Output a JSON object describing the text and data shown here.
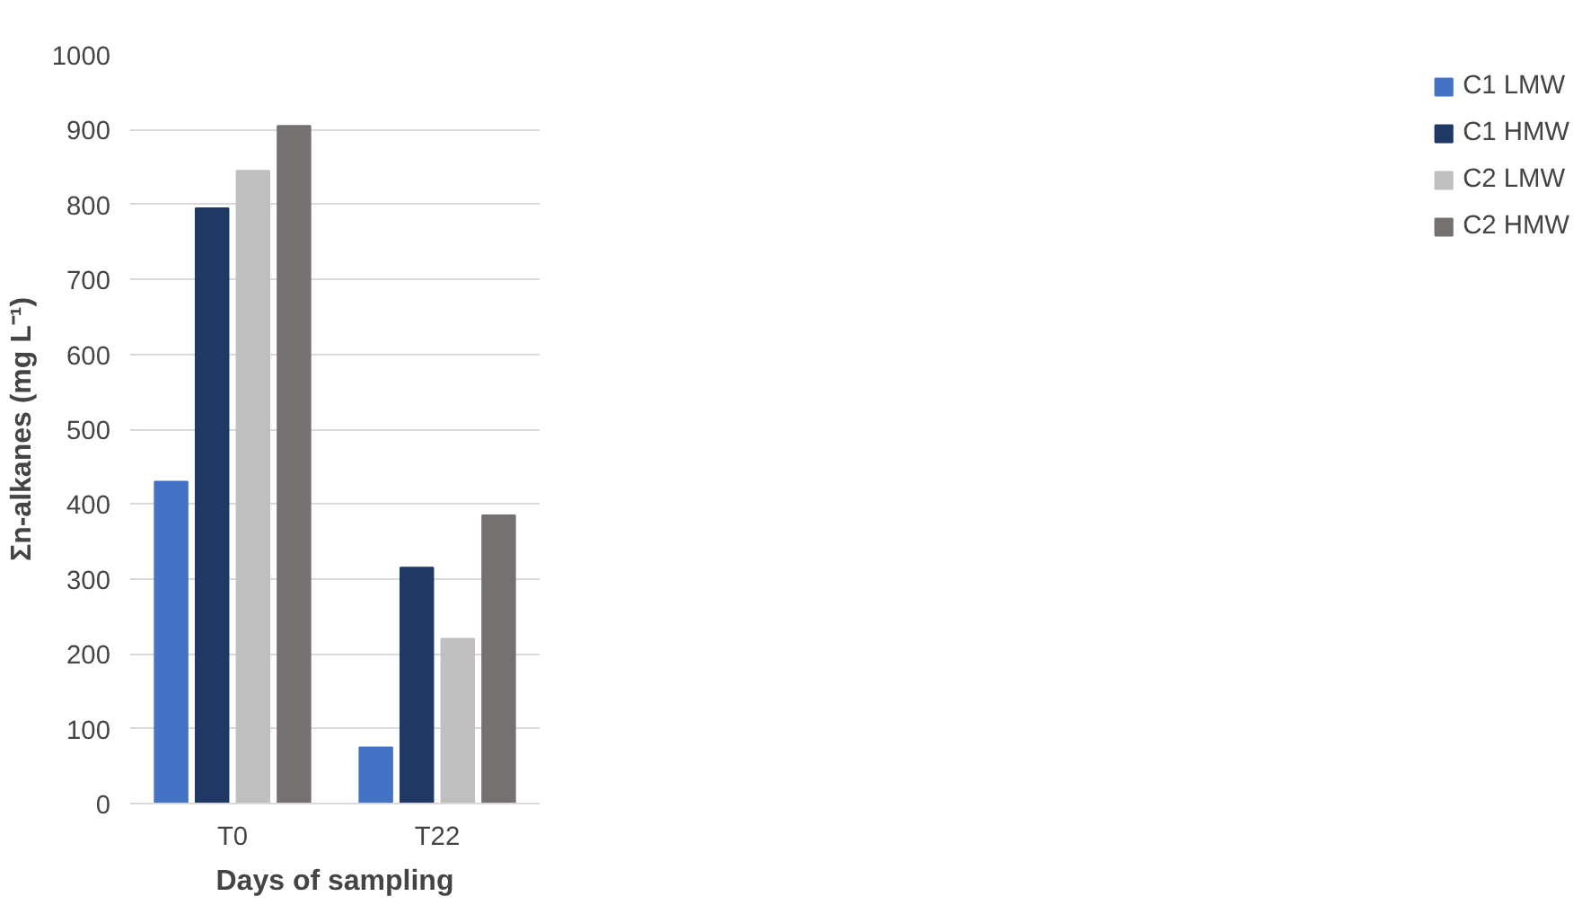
{
  "chart_data": {
    "type": "bar",
    "xlabel": "Days of sampling",
    "ylabel": "Σn-alkanes (mg L⁻¹)",
    "categories": [
      "T0",
      "T22"
    ],
    "series": [
      {
        "name": "C1 LMW",
        "color": "#4472c4",
        "values": [
          430,
          75
        ]
      },
      {
        "name": "C1 HMW",
        "color": "#203864",
        "values": [
          795,
          315
        ]
      },
      {
        "name": "C2 LMW",
        "color": "#bfbfbf",
        "values": [
          845,
          220
        ]
      },
      {
        "name": "C2 HMW",
        "color": "#767171",
        "values": [
          905,
          385
        ]
      }
    ],
    "ylim": [
      0,
      1000
    ],
    "yticks": [
      0,
      100,
      200,
      300,
      400,
      500,
      600,
      700,
      800,
      900,
      1000
    ],
    "grid": "y",
    "legend": "right"
  }
}
